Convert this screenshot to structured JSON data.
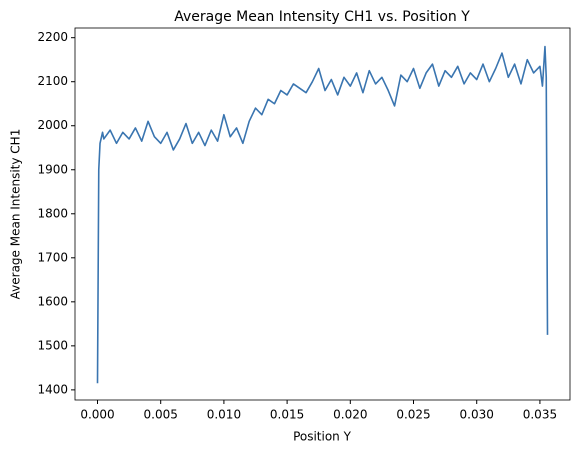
{
  "chart_data": {
    "type": "line",
    "title": "Average Mean Intensity CH1 vs. Position Y",
    "x_label": "Position Y",
    "y_label": "Average Mean Intensity CH1",
    "color": "#3a75b0",
    "x": [
      0,
      0.0001,
      0.0002,
      0.0004,
      0.0005,
      0.001,
      0.0015,
      0.002,
      0.0025,
      0.003,
      0.0035,
      0.004,
      0.0045,
      0.005,
      0.0055,
      0.006,
      0.0065,
      0.007,
      0.0075,
      0.008,
      0.0085,
      0.009,
      0.0095,
      0.01,
      0.0105,
      0.011,
      0.0115,
      0.012,
      0.0125,
      0.013,
      0.0135,
      0.014,
      0.0145,
      0.015,
      0.0155,
      0.016,
      0.0165,
      0.017,
      0.0175,
      0.018,
      0.0185,
      0.019,
      0.0195,
      0.02,
      0.0205,
      0.021,
      0.0215,
      0.022,
      0.0225,
      0.023,
      0.0235,
      0.024,
      0.0245,
      0.025,
      0.0255,
      0.026,
      0.0265,
      0.027,
      0.0275,
      0.028,
      0.0285,
      0.029,
      0.0295,
      0.03,
      0.0305,
      0.031,
      0.0315,
      0.032,
      0.0325,
      0.033,
      0.0335,
      0.034,
      0.0345,
      0.035,
      0.0352,
      0.0354,
      0.0355,
      0.0356
    ],
    "values": [
      1415,
      1900,
      1960,
      1985,
      1970,
      1990,
      1960,
      1985,
      1970,
      1995,
      1965,
      2010,
      1975,
      1960,
      1985,
      1945,
      1970,
      2005,
      1960,
      1985,
      1955,
      1990,
      1965,
      2025,
      1975,
      1995,
      1960,
      2010,
      2040,
      2025,
      2060,
      2050,
      2080,
      2070,
      2095,
      2085,
      2075,
      2100,
      2130,
      2080,
      2105,
      2070,
      2110,
      2090,
      2120,
      2075,
      2125,
      2095,
      2110,
      2080,
      2045,
      2115,
      2100,
      2130,
      2085,
      2120,
      2140,
      2090,
      2125,
      2110,
      2135,
      2095,
      2120,
      2105,
      2140,
      2100,
      2130,
      2165,
      2110,
      2140,
      2095,
      2150,
      2120,
      2135,
      2090,
      2180,
      2110,
      1525
    ],
    "xlim": [
      -0.00178,
      0.03738
    ],
    "ylim": [
      1377,
      2222
    ],
    "xticks": [
      {
        "value": 0,
        "label": "0.000"
      },
      {
        "value": 0.005,
        "label": "0.005"
      },
      {
        "value": 0.01,
        "label": "0.010"
      },
      {
        "value": 0.015,
        "label": "0.015"
      },
      {
        "value": 0.02,
        "label": "0.020"
      },
      {
        "value": 0.025,
        "label": "0.025"
      },
      {
        "value": 0.03,
        "label": "0.030"
      },
      {
        "value": 0.035,
        "label": "0.035"
      }
    ],
    "yticks": [
      1400,
      1500,
      1600,
      1700,
      1800,
      1900,
      2000,
      2100,
      2200
    ],
    "grid": false
  }
}
